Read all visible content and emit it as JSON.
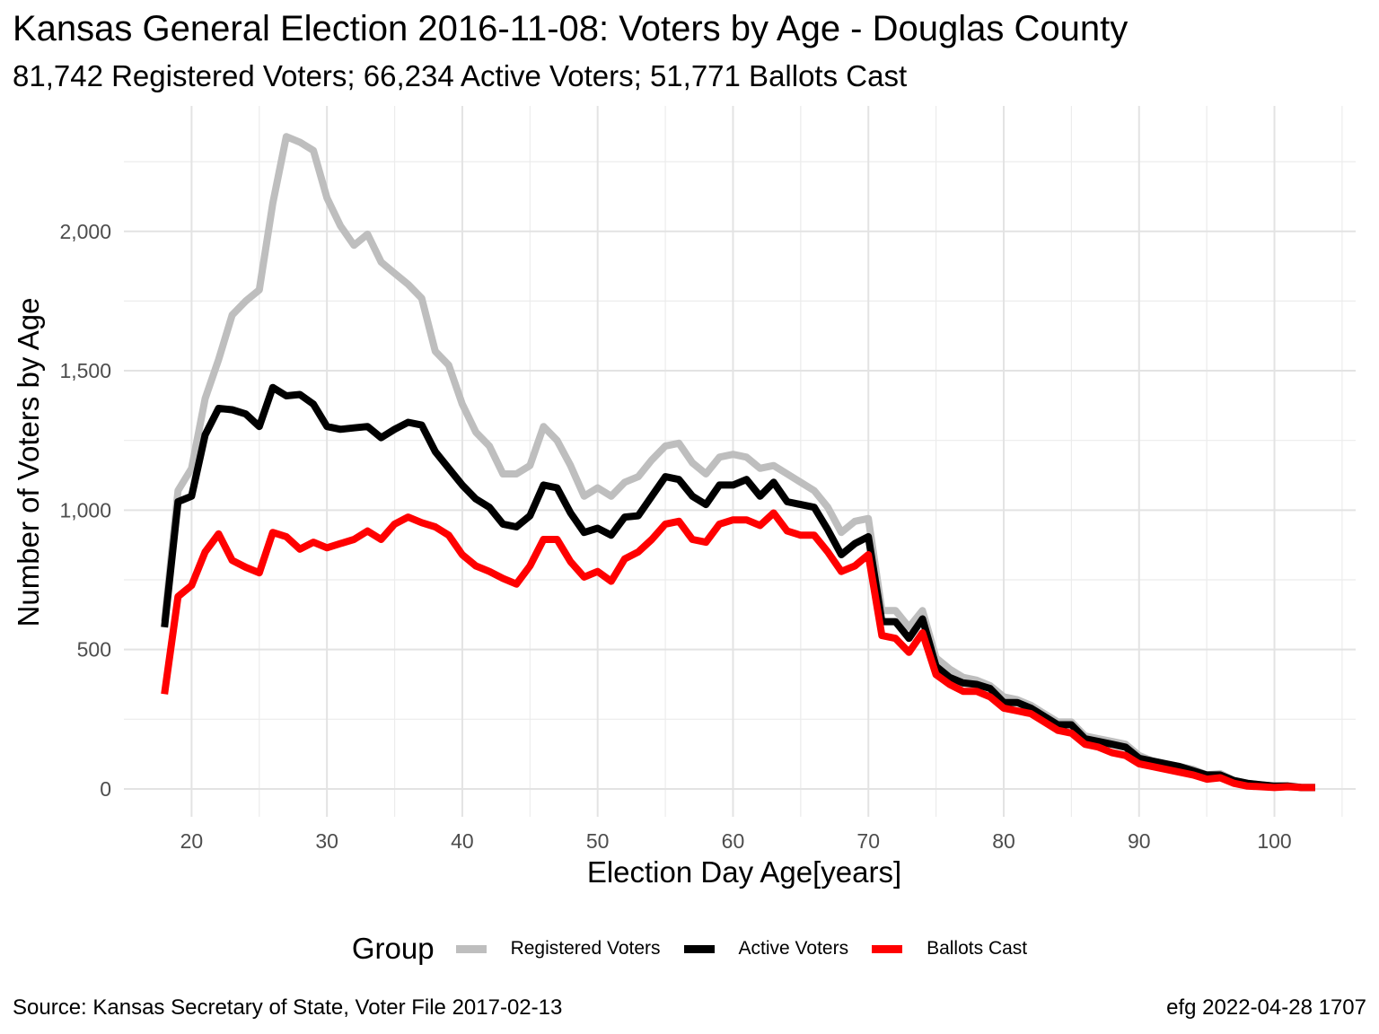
{
  "chart_data": {
    "type": "line",
    "title": "Kansas General Election 2016-11-08:  Voters by Age - Douglas County",
    "subtitle": "81,742 Registered Voters; 66,234 Active Voters; 51,771 Ballots Cast",
    "xlabel": "Election Day Age[years]",
    "ylabel": "Number of Voters by Age",
    "xlim": [
      15,
      106
    ],
    "ylim": [
      -100,
      2450
    ],
    "x_ticks": [
      20,
      30,
      40,
      50,
      60,
      70,
      80,
      90,
      100
    ],
    "x_tick_labels": [
      "20",
      "30",
      "40",
      "50",
      "60",
      "70",
      "80",
      "90",
      "100"
    ],
    "y_ticks": [
      0,
      500,
      1000,
      1500,
      2000
    ],
    "y_tick_labels": [
      "0",
      "500",
      "1,000",
      "1,500",
      "2,000"
    ],
    "grid": true,
    "legend_position": "bottom",
    "legend_title": "Group",
    "x": [
      18,
      19,
      20,
      21,
      22,
      23,
      24,
      25,
      26,
      27,
      28,
      29,
      30,
      31,
      32,
      33,
      34,
      35,
      36,
      37,
      38,
      39,
      40,
      41,
      42,
      43,
      44,
      45,
      46,
      47,
      48,
      49,
      50,
      51,
      52,
      53,
      54,
      55,
      56,
      57,
      58,
      59,
      60,
      61,
      62,
      63,
      64,
      65,
      66,
      67,
      68,
      69,
      70,
      71,
      72,
      73,
      74,
      75,
      76,
      77,
      78,
      79,
      80,
      81,
      82,
      83,
      84,
      85,
      86,
      87,
      88,
      89,
      90,
      91,
      92,
      93,
      94,
      95,
      96,
      97,
      98,
      99,
      100,
      101,
      102,
      103
    ],
    "series": [
      {
        "name": "Registered Voters",
        "color": "#bebebe",
        "values": [
          600,
          1070,
          1150,
          1400,
          1540,
          1700,
          1750,
          1790,
          2100,
          2340,
          2320,
          2290,
          2120,
          2020,
          1950,
          1990,
          1890,
          1850,
          1810,
          1760,
          1570,
          1520,
          1380,
          1280,
          1230,
          1130,
          1130,
          1160,
          1300,
          1250,
          1160,
          1050,
          1080,
          1050,
          1100,
          1120,
          1180,
          1230,
          1240,
          1170,
          1130,
          1190,
          1200,
          1190,
          1150,
          1160,
          1130,
          1100,
          1070,
          1010,
          920,
          960,
          970,
          640,
          640,
          580,
          640,
          470,
          430,
          400,
          390,
          370,
          330,
          320,
          300,
          270,
          240,
          240,
          190,
          180,
          170,
          160,
          120,
          100,
          90,
          80,
          70,
          50,
          55,
          30,
          20,
          15,
          10,
          12,
          5,
          5
        ]
      },
      {
        "name": "Active Voters",
        "color": "#000000",
        "values": [
          580,
          1030,
          1050,
          1270,
          1365,
          1360,
          1345,
          1300,
          1440,
          1410,
          1415,
          1380,
          1300,
          1290,
          1295,
          1300,
          1260,
          1290,
          1315,
          1305,
          1210,
          1150,
          1090,
          1040,
          1010,
          950,
          940,
          980,
          1090,
          1080,
          990,
          920,
          935,
          910,
          975,
          980,
          1050,
          1120,
          1110,
          1050,
          1020,
          1090,
          1090,
          1110,
          1050,
          1100,
          1030,
          1020,
          1010,
          930,
          840,
          880,
          905,
          600,
          600,
          540,
          610,
          440,
          400,
          380,
          375,
          360,
          310,
          310,
          290,
          260,
          230,
          230,
          180,
          170,
          160,
          150,
          110,
          100,
          90,
          80,
          65,
          50,
          50,
          30,
          20,
          15,
          10,
          10,
          5,
          5
        ]
      },
      {
        "name": "Ballots Cast",
        "color": "#ff0000",
        "values": [
          340,
          690,
          730,
          850,
          915,
          820,
          795,
          775,
          920,
          905,
          860,
          885,
          865,
          880,
          895,
          925,
          895,
          950,
          975,
          955,
          940,
          910,
          840,
          800,
          780,
          755,
          735,
          800,
          895,
          895,
          815,
          760,
          780,
          745,
          825,
          850,
          895,
          950,
          960,
          895,
          885,
          950,
          965,
          965,
          945,
          990,
          925,
          910,
          910,
          850,
          780,
          800,
          840,
          550,
          540,
          490,
          560,
          410,
          375,
          350,
          350,
          330,
          290,
          280,
          270,
          240,
          210,
          200,
          160,
          150,
          130,
          120,
          90,
          80,
          70,
          60,
          50,
          35,
          40,
          20,
          10,
          8,
          5,
          8,
          5,
          5
        ]
      }
    ]
  }
}
